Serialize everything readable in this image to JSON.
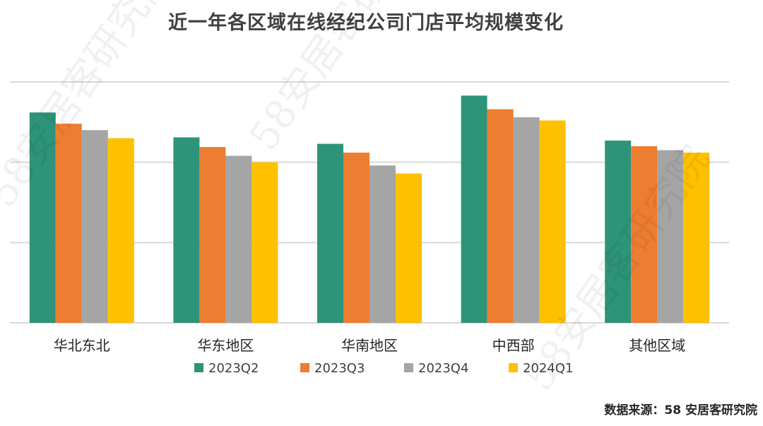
{
  "chart_data": {
    "type": "bar",
    "title": "近一年各区域在线经纪公司门店平均规模变化",
    "categories": [
      "华北东北",
      "华东地区",
      "华南地区",
      "中西部",
      "其他区域"
    ],
    "series": [
      {
        "name": "2023Q2",
        "color": "#2E9479",
        "values": [
          2.62,
          2.31,
          2.23,
          2.83,
          2.27
        ]
      },
      {
        "name": "2023Q3",
        "color": "#ED7D31",
        "values": [
          2.48,
          2.19,
          2.12,
          2.66,
          2.2
        ]
      },
      {
        "name": "2023Q4",
        "color": "#A5A5A5",
        "values": [
          2.4,
          2.08,
          1.96,
          2.56,
          2.15
        ]
      },
      {
        "name": "2024Q1",
        "color": "#FFC000",
        "values": [
          2.3,
          2.0,
          1.86,
          2.52,
          2.12
        ]
      }
    ],
    "ylim": [
      0,
      3
    ],
    "grid": true,
    "legend": "bottom",
    "xlabel": "",
    "ylabel": ""
  },
  "watermark": "58安居客研究院",
  "source": "数据来源：58 安居客研究院"
}
